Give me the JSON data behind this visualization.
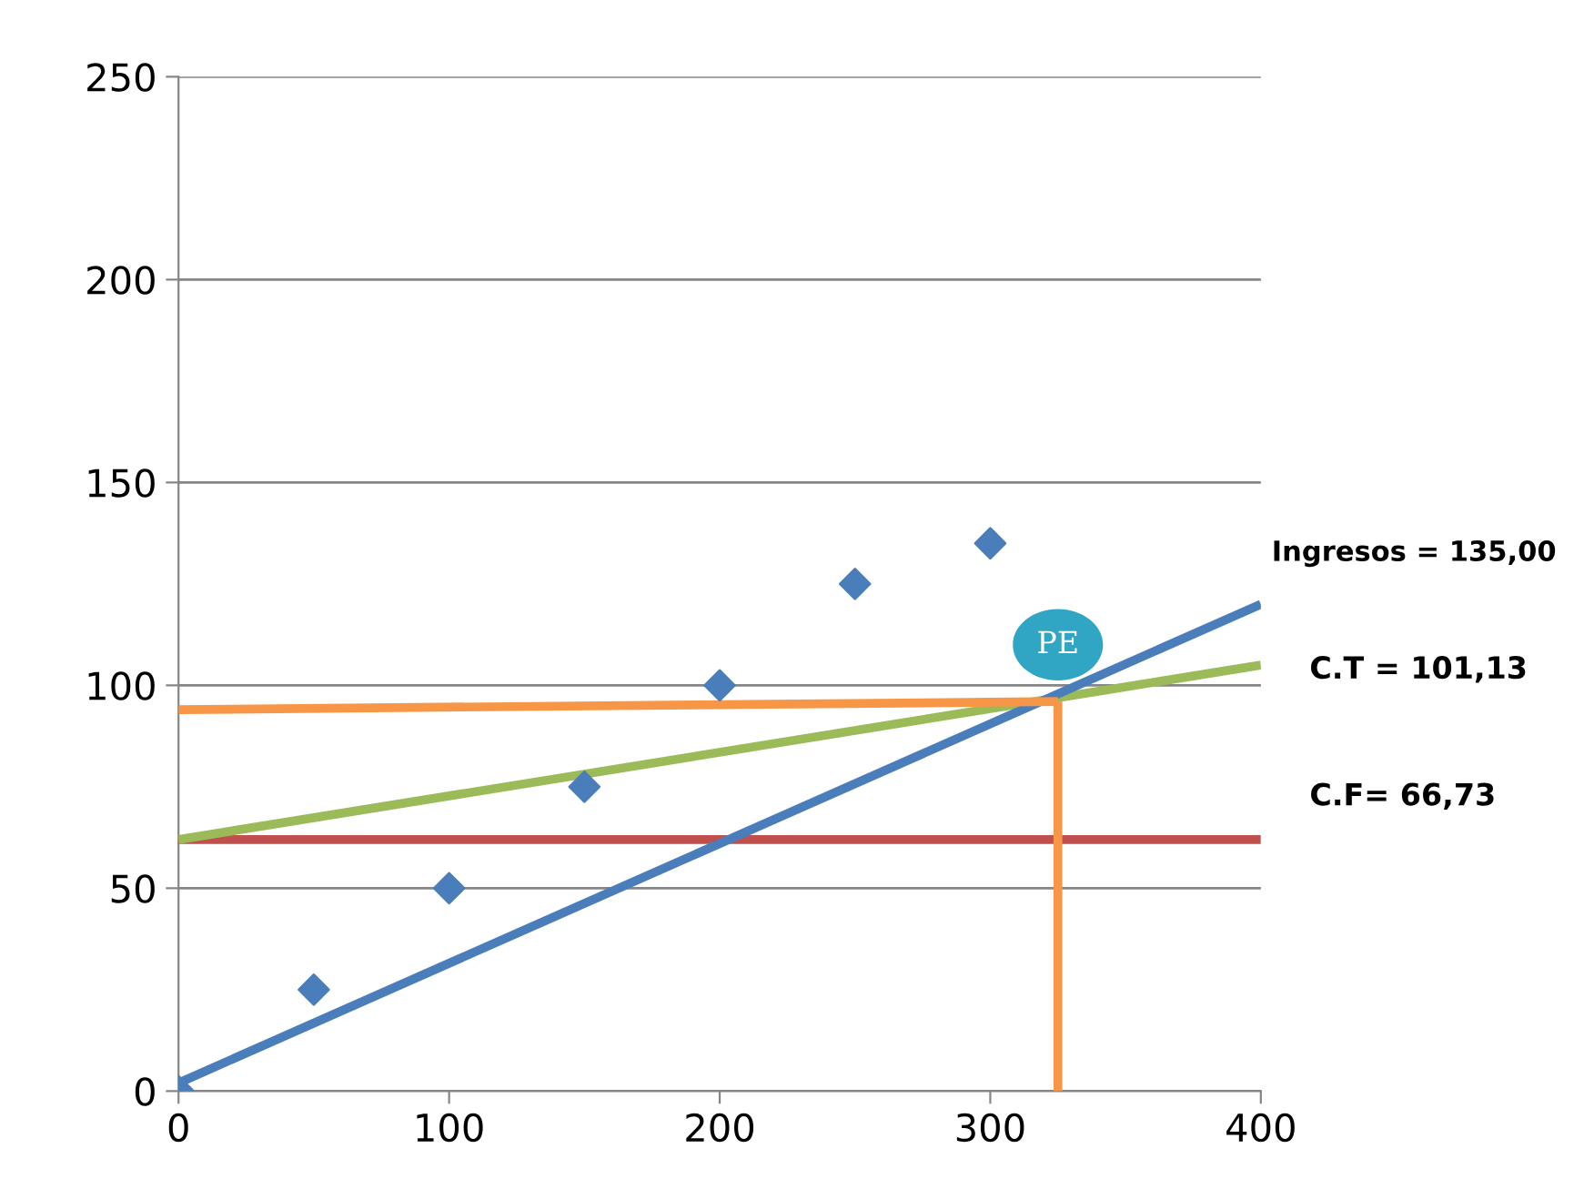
{
  "chart_data": {
    "type": "scatter",
    "xlim": [
      0,
      400
    ],
    "ylim": [
      0,
      250
    ],
    "xticks": [
      0,
      100,
      200,
      300,
      400
    ],
    "yticks": [
      0,
      50,
      100,
      150,
      200,
      250
    ],
    "grid": "y",
    "series": [
      {
        "marker": "diamond",
        "color": "#4a7ebb",
        "x": [
          0,
          50,
          100,
          150,
          200,
          250,
          300
        ],
        "values": [
          0,
          25,
          50,
          75,
          100,
          125,
          135
        ]
      },
      {
        "type": "line",
        "color": "#c0504d",
        "x": [
          0,
          400
        ],
        "values": [
          62,
          62
        ]
      },
      {
        "type": "line",
        "color": "#9bbb59",
        "x": [
          0,
          400
        ],
        "values": [
          62,
          105
        ]
      },
      {
        "type": "line",
        "color": "#4a7ebb",
        "x": [
          0,
          400
        ],
        "values": [
          2,
          120
        ]
      },
      {
        "type": "line",
        "color": "#f79646",
        "x": [
          0,
          325
        ],
        "values": [
          94,
          96
        ]
      },
      {
        "type": "line",
        "color": "#f79646",
        "x": [
          325,
          325
        ],
        "values": [
          0,
          96
        ]
      }
    ],
    "annotations": [
      "PE",
      "Ingresos = 135,00",
      "C.T = 101,13",
      "C.F= 66,73"
    ]
  }
}
